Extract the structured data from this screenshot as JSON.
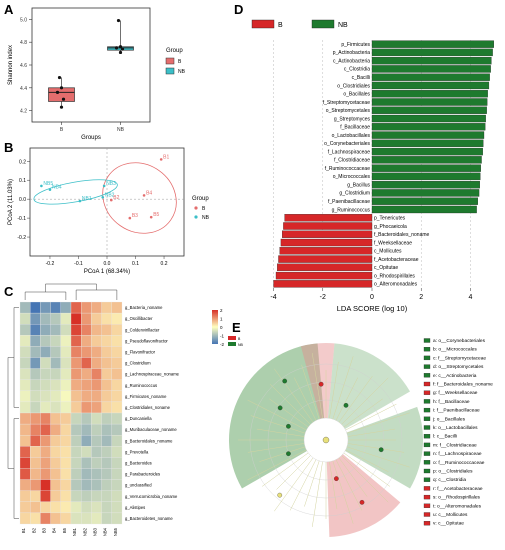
{
  "panel_letters": {
    "A": "A",
    "B": "B",
    "C": "C",
    "D": "D",
    "E": "E"
  },
  "chart_data": [
    {
      "panel": "A",
      "type": "box",
      "ylabel": "Shannon index",
      "xlabel": "Groups",
      "categories": [
        "B",
        "NB"
      ],
      "ylim": [
        4.1,
        5.1
      ],
      "yticks": [
        4.2,
        4.4,
        4.6,
        4.8,
        5.0
      ],
      "boxes": [
        {
          "name": "B",
          "q1": 4.28,
          "median": 4.36,
          "q3": 4.4,
          "whisker_low": 4.23,
          "whisker_high": 4.49,
          "points": [
            4.23,
            4.3,
            4.36,
            4.4,
            4.49
          ]
        },
        {
          "name": "NB",
          "q1": 4.73,
          "median": 4.75,
          "q3": 4.76,
          "whisker_low": 4.71,
          "whisker_high": 4.99,
          "points": [
            4.71,
            4.74,
            4.75,
            4.76,
            4.99
          ]
        }
      ],
      "legend": {
        "title": "Group",
        "items": [
          "B",
          "NB"
        ]
      },
      "colors": {
        "B": "#e46d6d",
        "NB": "#3bbfc8"
      }
    },
    {
      "panel": "B",
      "type": "scatter",
      "xlabel": "PCoA 1 (68.34%)",
      "ylabel": "PCoA 2 (11.03%)",
      "xlim": [
        -0.27,
        0.27
      ],
      "ylim": [
        -0.3,
        0.27
      ],
      "xticks": [
        -0.2,
        -0.1,
        0.0,
        0.1,
        0.2
      ],
      "yticks": [
        -0.2,
        -0.1,
        0.0,
        0.1,
        0.2
      ],
      "series": [
        {
          "name": "B",
          "points": [
            {
              "label": "B1",
              "x": 0.19,
              "y": 0.21
            },
            {
              "label": "B2",
              "x": 0.015,
              "y": -0.005
            },
            {
              "label": "B3",
              "x": 0.08,
              "y": -0.1
            },
            {
              "label": "B4",
              "x": 0.13,
              "y": 0.02
            },
            {
              "label": "B5",
              "x": 0.155,
              "y": -0.095
            }
          ]
        },
        {
          "name": "NB",
          "points": [
            {
              "label": "NB1",
              "x": -0.095,
              "y": -0.01
            },
            {
              "label": "NB2",
              "x": -0.015,
              "y": 0.01
            },
            {
              "label": "NB3",
              "x": -0.01,
              "y": 0.07
            },
            {
              "label": "NB4",
              "x": -0.2,
              "y": 0.05
            },
            {
              "label": "NB5",
              "x": -0.23,
              "y": 0.07
            }
          ]
        }
      ],
      "legend": {
        "title": "Group",
        "items": [
          "B",
          "NB"
        ]
      }
    },
    {
      "panel": "C",
      "type": "heatmap",
      "columns": [
        "B1",
        "B2",
        "B3",
        "B4",
        "B5",
        "NB1",
        "NB2",
        "NB3",
        "NB4",
        "NB5"
      ],
      "rows": [
        "g_Bacteria_noname",
        "g_Oscillibacter",
        "g_Coldenvirillacter",
        "g_Pseudoflavonifractor",
        "g_Flavonifractor",
        "g_Clostridium",
        "g_Lachnospiraceae_noname",
        "g_Ruminococcus",
        "g_Firmicutes_noname",
        "g_Clostridiales_noname",
        "g_Duncaniella",
        "g_Muribaculaceae_noname",
        "g_Bacteroidales_noname",
        "g_Prevotella",
        "g_Bacteroides",
        "g_Parabacteroides",
        "g_unclassified",
        "g_Verrucomicrobia_noname",
        "g_Alistipes",
        "g_Bacteroidetes_noname"
      ],
      "values": [
        [
          -1.0,
          -2.0,
          -1.5,
          -1.8,
          -1.2,
          1.5,
          1.0,
          0.8,
          0.5,
          0.6
        ],
        [
          -0.5,
          -1.5,
          -1.0,
          -0.8,
          -0.3,
          2.0,
          1.0,
          0.5,
          0.3,
          0.2
        ],
        [
          -0.8,
          -1.8,
          -1.2,
          -1.0,
          -0.5,
          1.8,
          1.2,
          0.7,
          0.6,
          0.4
        ],
        [
          -0.3,
          -1.2,
          -0.8,
          -0.6,
          -0.2,
          1.5,
          0.8,
          0.5,
          0.4,
          0.3
        ],
        [
          -0.5,
          -1.0,
          -1.2,
          -0.8,
          -0.3,
          1.2,
          1.0,
          0.8,
          0.5,
          0.4
        ],
        [
          -0.6,
          -1.5,
          -0.5,
          -1.0,
          -0.4,
          1.0,
          1.5,
          0.8,
          0.6,
          0.5
        ],
        [
          -0.4,
          -0.8,
          -0.6,
          -0.6,
          -0.3,
          1.0,
          0.8,
          1.2,
          0.5,
          0.6
        ],
        [
          -0.3,
          -0.6,
          -0.5,
          -0.4,
          -0.2,
          0.8,
          0.9,
          1.0,
          0.6,
          0.4
        ],
        [
          -0.2,
          -0.5,
          -0.4,
          -0.3,
          -0.1,
          0.6,
          0.8,
          0.8,
          0.5,
          0.4
        ],
        [
          -0.3,
          -0.6,
          -0.3,
          -0.4,
          -0.2,
          0.5,
          1.0,
          0.9,
          0.4,
          0.3
        ],
        [
          0.8,
          1.0,
          1.2,
          0.6,
          0.5,
          -0.6,
          -0.8,
          -0.5,
          -0.7,
          -0.6
        ],
        [
          0.7,
          1.2,
          1.5,
          0.8,
          0.4,
          -0.8,
          -1.0,
          -0.7,
          -0.9,
          -0.8
        ],
        [
          0.6,
          1.5,
          1.0,
          0.5,
          0.4,
          -0.7,
          -1.2,
          -0.8,
          -1.0,
          -0.6
        ],
        [
          1.5,
          0.5,
          0.8,
          0.4,
          0.3,
          -0.6,
          -0.5,
          -0.8,
          -0.7,
          -0.5
        ],
        [
          1.8,
          0.6,
          0.9,
          0.5,
          0.3,
          -0.6,
          -0.9,
          -0.7,
          -0.8,
          -0.6
        ],
        [
          1.6,
          0.7,
          1.0,
          0.6,
          0.3,
          -0.7,
          -1.0,
          -0.9,
          -0.8,
          -0.6
        ],
        [
          0.8,
          1.0,
          2.0,
          0.6,
          0.4,
          -0.8,
          -1.0,
          -0.9,
          -0.7,
          -0.6
        ],
        [
          0.5,
          0.4,
          1.8,
          0.5,
          0.3,
          -0.6,
          -0.7,
          -0.6,
          -0.6,
          -0.5
        ],
        [
          0.5,
          0.6,
          0.4,
          0.3,
          0.2,
          -0.3,
          -0.5,
          -0.4,
          -0.6,
          -0.5
        ],
        [
          0.4,
          0.3,
          1.2,
          0.6,
          0.4,
          -0.4,
          -0.4,
          -0.3,
          -0.6,
          -0.5
        ]
      ],
      "colorbar_ticks": [
        2,
        1,
        0,
        -1,
        -2
      ],
      "colors": {
        "low": "#4575b4",
        "mid": "#ffffbf",
        "high": "#d73027"
      }
    },
    {
      "panel": "D",
      "type": "bar",
      "orientation": "horizontal",
      "xlabel": "LDA SCORE (log 10)",
      "xlim": [
        -5.2,
        5.2
      ],
      "xticks": [
        -4,
        -2,
        0,
        2,
        4
      ],
      "legend": {
        "items": [
          "B",
          "NB"
        ]
      },
      "colors": {
        "B": "#d62728",
        "NB": "#1e7a2e"
      },
      "bars": [
        {
          "label": "p_Firmicutes",
          "value": 4.95,
          "group": "NB"
        },
        {
          "label": "p_Actinobacteria",
          "value": 4.9,
          "group": "NB"
        },
        {
          "label": "c_Actinobacteria",
          "value": 4.85,
          "group": "NB"
        },
        {
          "label": "c_Clostridia",
          "value": 4.82,
          "group": "NB"
        },
        {
          "label": "c_Bacilli",
          "value": 4.78,
          "group": "NB"
        },
        {
          "label": "o_Clostridiales",
          "value": 4.75,
          "group": "NB"
        },
        {
          "label": "o_Bacillales",
          "value": 4.7,
          "group": "NB"
        },
        {
          "label": "f_Streptomycetaceae",
          "value": 4.68,
          "group": "NB"
        },
        {
          "label": "o_Streptomycetales",
          "value": 4.66,
          "group": "NB"
        },
        {
          "label": "g_Streptomyces",
          "value": 4.62,
          "group": "NB"
        },
        {
          "label": "f_Bacillaceae",
          "value": 4.6,
          "group": "NB"
        },
        {
          "label": "o_Lactobacillales",
          "value": 4.55,
          "group": "NB"
        },
        {
          "label": "o_Corynebacteriales",
          "value": 4.52,
          "group": "NB"
        },
        {
          "label": "f_Lachnospiraceae",
          "value": 4.5,
          "group": "NB"
        },
        {
          "label": "f_Clostridiaceae",
          "value": 4.45,
          "group": "NB"
        },
        {
          "label": "f_Ruminococcaceae",
          "value": 4.42,
          "group": "NB"
        },
        {
          "label": "o_Micrococcales",
          "value": 4.4,
          "group": "NB"
        },
        {
          "label": "g_Bacillus",
          "value": 4.38,
          "group": "NB"
        },
        {
          "label": "g_Clostridium",
          "value": 4.35,
          "group": "NB"
        },
        {
          "label": "f_Paenibacillaceae",
          "value": 4.3,
          "group": "NB"
        },
        {
          "label": "g_Ruminococcus",
          "value": 4.25,
          "group": "NB"
        },
        {
          "label": "p_Tenericutes",
          "value": -3.55,
          "group": "B"
        },
        {
          "label": "g_Phocaeicola",
          "value": -3.6,
          "group": "B"
        },
        {
          "label": "f_Bacteroidales_noname",
          "value": -3.65,
          "group": "B"
        },
        {
          "label": "f_Weeksellaceae",
          "value": -3.7,
          "group": "B"
        },
        {
          "label": "c_Mollicutes",
          "value": -3.75,
          "group": "B"
        },
        {
          "label": "f_Acetobacteraceae",
          "value": -3.8,
          "group": "B"
        },
        {
          "label": "c_Opitutae",
          "value": -3.85,
          "group": "B"
        },
        {
          "label": "o_Rhodospirillales",
          "value": -3.9,
          "group": "B"
        },
        {
          "label": "o_Alteromonadales",
          "value": -4.0,
          "group": "B"
        }
      ]
    },
    {
      "panel": "E",
      "type": "cladogram",
      "legend_header": [
        "B",
        "NB"
      ],
      "legend": [
        {
          "label": "a: o__Corynebacteriales",
          "group": "NB"
        },
        {
          "label": "b: o__Micrococcales",
          "group": "NB"
        },
        {
          "label": "c: f__Streptomycetaceae",
          "group": "NB"
        },
        {
          "label": "d: o__Streptomycetales",
          "group": "NB"
        },
        {
          "label": "e: c__Actinobacteria",
          "group": "NB"
        },
        {
          "label": "f: f__Bacteroidales_noname",
          "group": "B"
        },
        {
          "label": "g: f__Weeksellaceae",
          "group": "B"
        },
        {
          "label": "h: f__Bacillaceae",
          "group": "NB"
        },
        {
          "label": "i: f__Paenibacillaceae",
          "group": "NB"
        },
        {
          "label": "j: o__Bacillales",
          "group": "NB"
        },
        {
          "label": "k: o__Lactobacillales",
          "group": "NB"
        },
        {
          "label": "l: c__Bacilli",
          "group": "NB"
        },
        {
          "label": "m: f__Clostridiaceae",
          "group": "NB"
        },
        {
          "label": "n: f__Lachnospiraceae",
          "group": "NB"
        },
        {
          "label": "o: f__Ruminococcaceae",
          "group": "NB"
        },
        {
          "label": "p: o__Clostridiales",
          "group": "NB"
        },
        {
          "label": "q: c__Clostridia",
          "group": "NB"
        },
        {
          "label": "r: f__Acetobacteraceae",
          "group": "B"
        },
        {
          "label": "s: o__Rhodospirillales",
          "group": "B"
        },
        {
          "label": "t: o__Alteromonadales",
          "group": "B"
        },
        {
          "label": "u: c__Mollicutes",
          "group": "B"
        },
        {
          "label": "v: c__Opitutae",
          "group": "B"
        }
      ],
      "colors": {
        "B": "#d62728",
        "NB": "#1e7a2e"
      }
    }
  ]
}
